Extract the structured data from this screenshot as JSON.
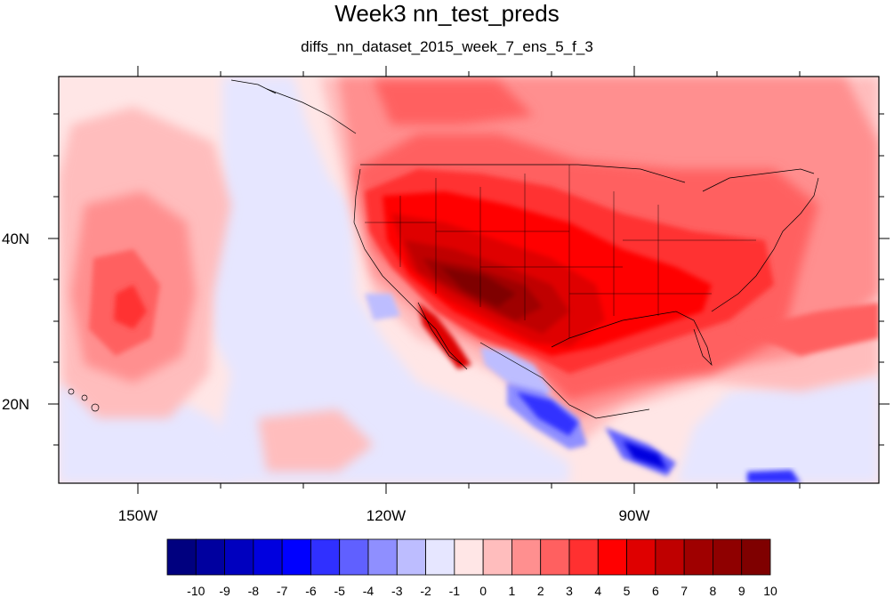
{
  "title": "Week3 nn_test_preds",
  "subtitle": "diffs_nn_dataset_2015_week_7_ens_5_f_3",
  "map": {
    "lat_ticks": [
      {
        "value": 40,
        "label": "40N"
      },
      {
        "value": 20,
        "label": "20N"
      }
    ],
    "lon_ticks": [
      {
        "value": -150,
        "label": "150W"
      },
      {
        "value": -120,
        "label": "120W"
      },
      {
        "value": -90,
        "label": "90W"
      }
    ]
  },
  "colorbar": {
    "labels": [
      "-10",
      "-9",
      "-8",
      "-7",
      "-6",
      "-5",
      "-4",
      "-3",
      "-2",
      "-1",
      "0",
      "1",
      "2",
      "3",
      "4",
      "5",
      "6",
      "7",
      "8",
      "9",
      "10"
    ],
    "colors": [
      "#00007f",
      "#00009f",
      "#0000bf",
      "#0000df",
      "#0000ff",
      "#3030ff",
      "#6060ff",
      "#8f8fff",
      "#bdbdff",
      "#e6e6ff",
      "#ffe6e6",
      "#ffbdbd",
      "#ff8f8f",
      "#ff6060",
      "#ff3030",
      "#ff0000",
      "#df0000",
      "#bf0000",
      "#9f0000",
      "#8f0000",
      "#7f0000"
    ]
  }
}
